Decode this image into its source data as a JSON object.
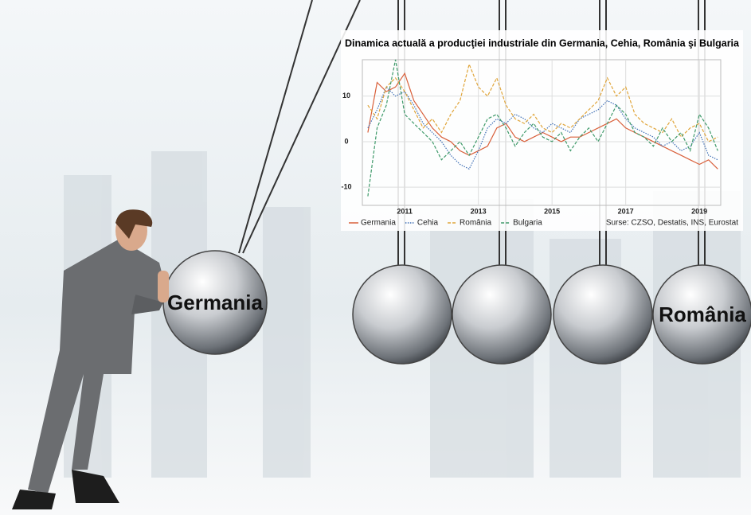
{
  "chart_data": {
    "type": "line",
    "title": "Dinamica actuală a producţiei industriale din Germania, Cehia, România şi Bulgaria",
    "source": "Surse: CZSO, Destatis, INS, Eurostat",
    "x": [
      2010,
      2010.25,
      2010.5,
      2010.75,
      2011,
      2011.25,
      2011.5,
      2011.75,
      2012,
      2012.25,
      2012.5,
      2012.75,
      2013,
      2013.25,
      2013.5,
      2013.75,
      2014,
      2014.25,
      2014.5,
      2014.75,
      2015,
      2015.25,
      2015.5,
      2015.75,
      2016,
      2016.25,
      2016.5,
      2016.75,
      2017,
      2017.25,
      2017.5,
      2017.75,
      2018,
      2018.25,
      2018.5,
      2018.75,
      2019,
      2019.25,
      2019.5
    ],
    "xlim": [
      2009.85,
      2019.58
    ],
    "xticks": [
      2011,
      2013,
      2015,
      2017,
      2019
    ],
    "ylim": [
      -14,
      18
    ],
    "yticks": [
      -10,
      0,
      10
    ],
    "grid": true,
    "series": [
      {
        "name": "Germania",
        "color": "#d9603b",
        "dash": "solid",
        "values": [
          2,
          13,
          11,
          12,
          15,
          9,
          6,
          3,
          1,
          0,
          -2,
          -3,
          -2,
          -1,
          3,
          4,
          1,
          0,
          1,
          2,
          1,
          0,
          1,
          1,
          2,
          3,
          4,
          5,
          3,
          2,
          1,
          0,
          -1,
          -2,
          -3,
          -4,
          -5,
          -4,
          -6
        ]
      },
      {
        "name": "Cehia",
        "color": "#3f6fb5",
        "dash": "dotted",
        "values": [
          3,
          7,
          12,
          10,
          11,
          8,
          4,
          2,
          0,
          -3,
          -5,
          -6,
          -2,
          3,
          5,
          4,
          6,
          5,
          3,
          2,
          4,
          3,
          2,
          5,
          6,
          7,
          9,
          8,
          5,
          3,
          2,
          1,
          -1,
          0,
          -2,
          -1,
          2,
          -3,
          -4
        ]
      },
      {
        "name": "România",
        "color": "#e0a53a",
        "dash": "dashed",
        "values": [
          8,
          5,
          12,
          14,
          11,
          7,
          3,
          5,
          2,
          6,
          9,
          17,
          12,
          10,
          14,
          8,
          5,
          4,
          6,
          3,
          2,
          4,
          3,
          5,
          7,
          9,
          14,
          10,
          12,
          6,
          4,
          3,
          2,
          5,
          1,
          3,
          4,
          0,
          1
        ]
      },
      {
        "name": "Bulgaria",
        "color": "#3f9a6a",
        "dash": "dashed",
        "values": [
          -12,
          3,
          8,
          18,
          6,
          4,
          2,
          0,
          -4,
          -2,
          0,
          -3,
          1,
          5,
          6,
          3,
          -1,
          2,
          4,
          1,
          0,
          2,
          -2,
          1,
          3,
          0,
          4,
          8,
          6,
          2,
          1,
          -1,
          3,
          0,
          2,
          -2,
          6,
          3,
          -2
        ]
      }
    ]
  },
  "illustration": {
    "ball_labels": [
      "Germania",
      "România"
    ]
  }
}
